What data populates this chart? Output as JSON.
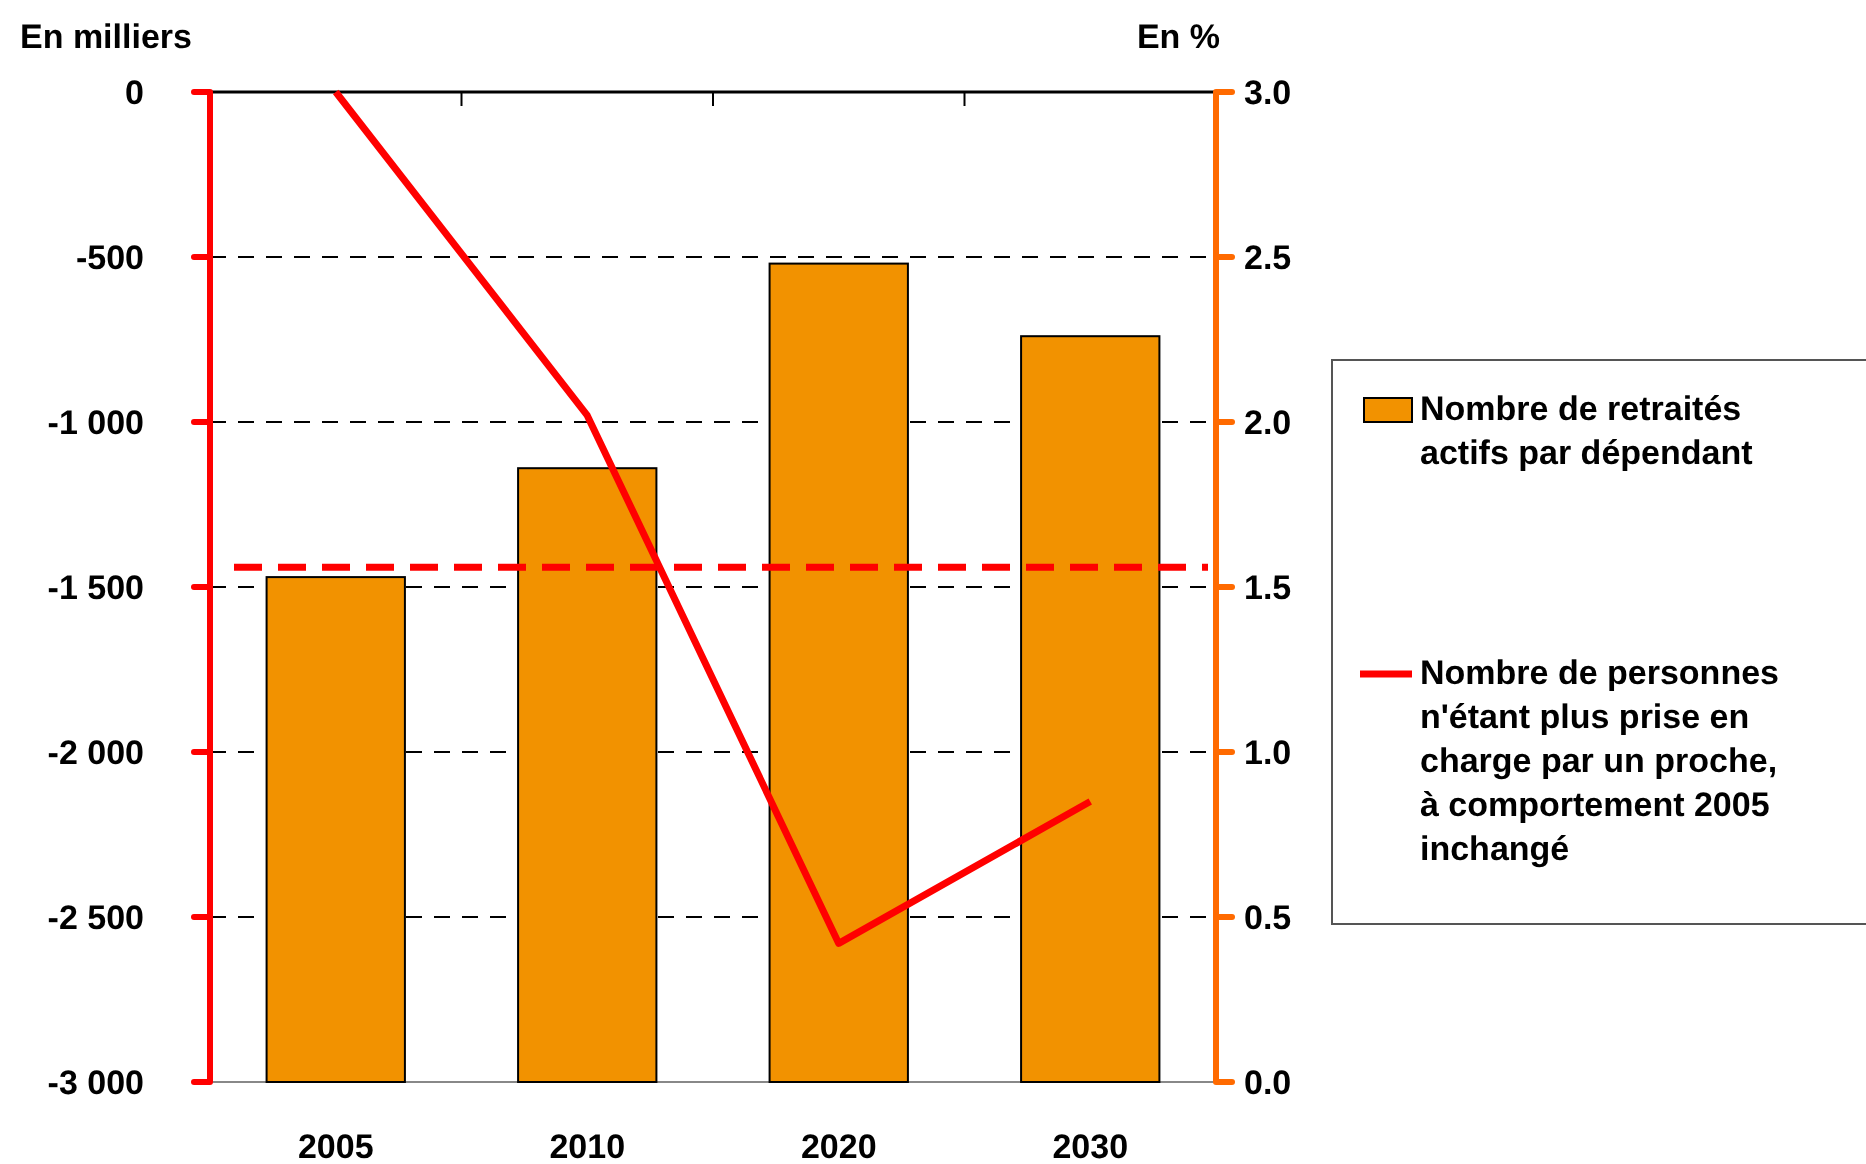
{
  "chart_data": {
    "type": "bar",
    "ylabel": "En milliers",
    "y2label": "En %",
    "categories": [
      "2005",
      "2010",
      "2020",
      "2030"
    ],
    "series": [
      {
        "name": "Nombre de retraités actifs par dépendant",
        "axis": "y2",
        "color": "#f29200",
        "values": [
          1.53,
          1.86,
          2.48,
          2.26
        ]
      },
      {
        "name": "Nombre de personnes n'étant plus prise en charge par un proche, à comportement 2005 inchangé",
        "type": "line",
        "axis": "y",
        "color": "#ff0000",
        "values": [
          0,
          -980,
          -2580,
          -2150
        ]
      }
    ],
    "ylim": [
      -3000,
      0
    ],
    "yticks": [
      {
        "value": -3000,
        "label": "-3 000"
      },
      {
        "value": -2500,
        "label": "-2 500"
      },
      {
        "value": -2000,
        "label": "-2 000"
      },
      {
        "value": -1500,
        "label": "-1 500"
      },
      {
        "value": -1000,
        "label": "-1 000"
      },
      -500,
      0
    ],
    "y2lim": [
      0,
      3
    ],
    "y2ticks": [
      {
        "value": 0,
        "label": "0.0"
      },
      {
        "value": 0.5,
        "label": "0.5"
      },
      {
        "value": 1,
        "label": "1.0"
      },
      {
        "value": 1.5,
        "label": "1.5"
      },
      {
        "value": 2,
        "label": "2.0"
      },
      {
        "value": 2.5,
        "label": "2.5"
      },
      {
        "value": 3,
        "label": "3.0"
      }
    ],
    "ref_lines": [
      {
        "axis": "y",
        "value": -1440,
        "color": "#ff0000",
        "line_style": "dashed"
      }
    ],
    "grid": "y",
    "legend": "right",
    "line_style": "solid",
    "marker": "none"
  }
}
